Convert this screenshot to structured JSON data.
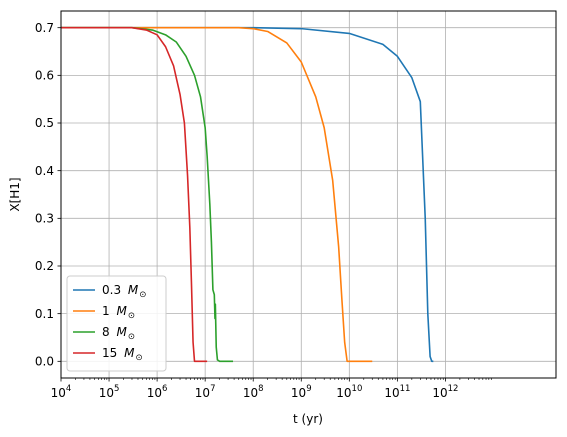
{
  "chart_data": {
    "type": "line",
    "title": "",
    "xlabel": "t (yr)",
    "ylabel": "X[H1]",
    "xscale": "log",
    "xlim": [
      10000,
      200000000000000
    ],
    "ylim": [
      -0.035,
      0.735
    ],
    "xticks": [
      {
        "value": 10000,
        "base": "10",
        "exp": "4"
      },
      {
        "value": 100000,
        "base": "10",
        "exp": "5"
      },
      {
        "value": 1000000,
        "base": "10",
        "exp": "6"
      },
      {
        "value": 10000000,
        "base": "10",
        "exp": "7"
      },
      {
        "value": 100000000,
        "base": "10",
        "exp": "8"
      },
      {
        "value": 1000000000,
        "base": "10",
        "exp": "9"
      },
      {
        "value": 10000000000,
        "base": "10",
        "exp": "10"
      },
      {
        "value": 100000000000,
        "base": "10",
        "exp": "11"
      },
      {
        "value": 1000000000000,
        "base": "10",
        "exp": "12"
      }
    ],
    "yticks": [
      {
        "value": 0.0,
        "label": "0.0"
      },
      {
        "value": 0.1,
        "label": "0.1"
      },
      {
        "value": 0.2,
        "label": "0.2"
      },
      {
        "value": 0.3,
        "label": "0.3"
      },
      {
        "value": 0.4,
        "label": "0.4"
      },
      {
        "value": 0.5,
        "label": "0.5"
      },
      {
        "value": 0.6,
        "label": "0.6"
      },
      {
        "value": 0.7,
        "label": "0.7"
      }
    ],
    "grid": true,
    "legend_position": "lower-left",
    "series": [
      {
        "name_value": "0.3",
        "name_symbol": "M",
        "name_subscript": "⊙",
        "color": "#1f77b4",
        "x": [
          10000,
          1000000,
          100000000,
          1000000000,
          10000000000,
          50000000000,
          100000000000,
          200000000000,
          300000000000,
          380000000000,
          430000000000,
          480000000000,
          520000000000,
          560000000000
        ],
        "y": [
          0.7,
          0.7,
          0.7,
          0.698,
          0.688,
          0.665,
          0.64,
          0.595,
          0.545,
          0.3,
          0.1,
          0.01,
          0.0,
          0.0
        ]
      },
      {
        "name_value": "1",
        "name_symbol": "M",
        "name_subscript": "⊙",
        "color": "#ff7f0e",
        "x": [
          10000,
          10000000,
          50000000,
          100000000,
          200000000,
          500000000,
          1000000000,
          2000000000,
          3000000000,
          4500000000,
          6000000000,
          7000000000,
          8000000000,
          9000000000,
          30000000000
        ],
        "y": [
          0.7,
          0.7,
          0.7,
          0.698,
          0.692,
          0.668,
          0.628,
          0.555,
          0.49,
          0.38,
          0.24,
          0.13,
          0.04,
          0.0,
          0.0
        ]
      },
      {
        "name_value": "8",
        "name_symbol": "M",
        "name_subscript": "⊙",
        "color": "#2ca02c",
        "x": [
          10000,
          300000,
          800000,
          1500000,
          2500000,
          4000000,
          6000000,
          8000000,
          10000000,
          11000000,
          12500000,
          13500000,
          14500000,
          15500000,
          16000000,
          16300000,
          17000000,
          18000000,
          20000000,
          38000000
        ],
        "y": [
          0.7,
          0.7,
          0.695,
          0.685,
          0.67,
          0.64,
          0.6,
          0.555,
          0.49,
          0.43,
          0.33,
          0.25,
          0.15,
          0.14,
          0.09,
          0.12,
          0.03,
          0.003,
          0.0,
          0.0
        ]
      },
      {
        "name_value": "15",
        "name_symbol": "M",
        "name_subscript": "⊙",
        "color": "#d62728",
        "x": [
          10000,
          300000,
          600000,
          1000000,
          1500000,
          2200000,
          3000000,
          3700000,
          4300000,
          4800000,
          5200000,
          5600000,
          6000000,
          6500000,
          11000000
        ],
        "y": [
          0.7,
          0.7,
          0.695,
          0.685,
          0.66,
          0.62,
          0.56,
          0.5,
          0.39,
          0.28,
          0.16,
          0.04,
          0.0,
          0.0,
          0.0
        ]
      }
    ]
  }
}
